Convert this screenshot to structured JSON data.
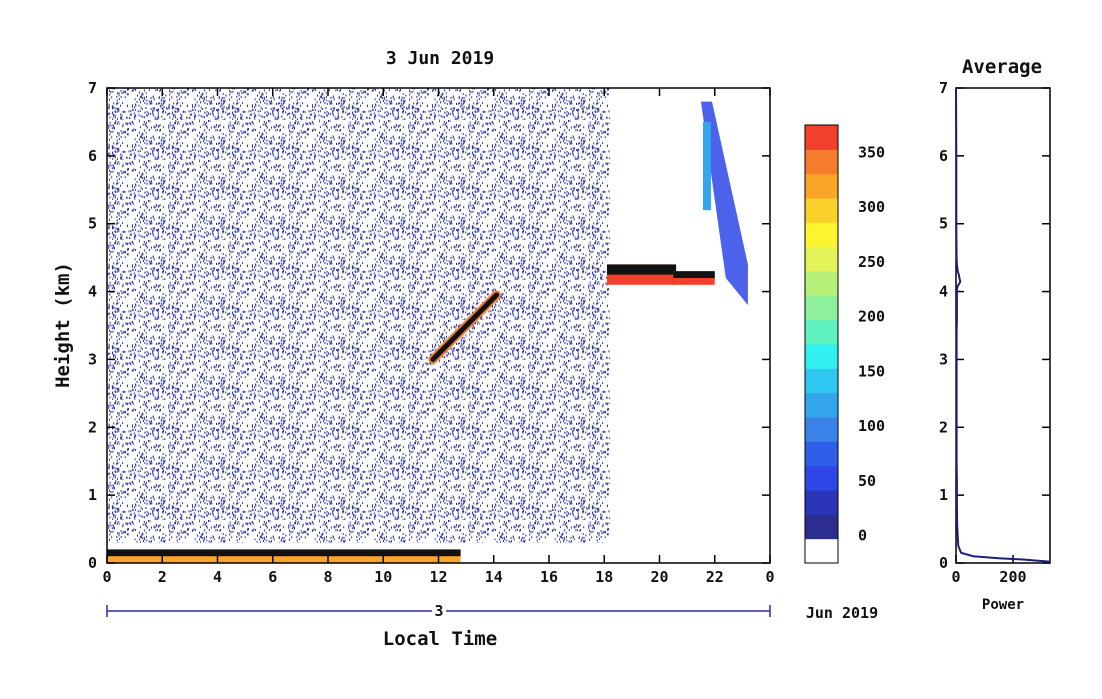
{
  "chart_data": [
    {
      "type": "heatmap",
      "title": "3 Jun 2019",
      "xlabel": "Local Time",
      "ylabel": "Height (km)",
      "xlim": [
        0,
        24
      ],
      "ylim": [
        0,
        7
      ],
      "x_tick_labels": [
        "0",
        "2",
        "4",
        "6",
        "8",
        "10",
        "12",
        "14",
        "16",
        "18",
        "20",
        "22",
        "0"
      ],
      "y_tick_labels": [
        "0",
        "1",
        "2",
        "3",
        "4",
        "5",
        "6",
        "7"
      ],
      "date_bar_label": "3",
      "date_suffix": "Jun 2019",
      "colorbar": {
        "ticks": [
          "0",
          "50",
          "100",
          "150",
          "200",
          "250",
          "300",
          "350"
        ],
        "tick_values": [
          0,
          50,
          100,
          150,
          200,
          250,
          300,
          350
        ],
        "range": [
          -25,
          375
        ],
        "colors": [
          "#ffffff",
          "#2c2e8f",
          "#2a35b7",
          "#2d47e6",
          "#2f5fe8",
          "#3a82e8",
          "#33a6ee",
          "#2fc7f0",
          "#33f0f0",
          "#5ef2c0",
          "#8df09a",
          "#b6f078",
          "#e2f45a",
          "#fbf431",
          "#fbd02a",
          "#f9a628",
          "#f57c2b",
          "#f2402d"
        ]
      },
      "features": [
        {
          "name": "surface layer",
          "x": [
            0,
            12.8
          ],
          "y": [
            0,
            0.2
          ],
          "level": 320
        },
        {
          "name": "rising cloud layer",
          "x": [
            11.8,
            14.1
          ],
          "y": [
            3.0,
            3.95
          ],
          "level": 360
        },
        {
          "name": "cloud layer",
          "x": [
            18.1,
            20.6
          ],
          "y": [
            4.1,
            4.4
          ],
          "level": 360
        },
        {
          "name": "cloud layer",
          "x": [
            20.5,
            22.0
          ],
          "y": [
            4.1,
            4.3
          ],
          "level": 360
        },
        {
          "name": "high cloud",
          "x": [
            21.5,
            23.2
          ],
          "y": [
            3.8,
            6.8
          ],
          "level": 80
        }
      ]
    },
    {
      "type": "line",
      "title": "Average",
      "xlabel": "Power",
      "ylabel": "",
      "xlim": [
        0,
        330
      ],
      "ylim": [
        0,
        7
      ],
      "x_tick_labels": [
        "0",
        "200"
      ],
      "y_tick_labels": [
        "0",
        "1",
        "2",
        "3",
        "4",
        "5",
        "6",
        "7"
      ],
      "power": [
        330,
        300,
        240,
        150,
        60,
        18,
        8,
        6,
        4,
        3,
        3,
        2,
        2,
        2,
        2,
        2,
        2,
        2,
        2,
        3,
        3,
        3,
        3,
        3,
        3,
        3,
        4,
        6,
        12,
        15,
        12,
        10,
        6,
        3,
        2,
        1,
        1,
        0
      ],
      "height": [
        0.02,
        0.03,
        0.05,
        0.07,
        0.1,
        0.15,
        0.25,
        0.4,
        0.6,
        0.9,
        1.2,
        1.5,
        1.8,
        2.1,
        2.4,
        2.7,
        3.0,
        3.2,
        3.4,
        3.6,
        3.7,
        3.8,
        3.9,
        3.95,
        4.0,
        4.02,
        4.05,
        4.08,
        4.12,
        4.15,
        4.2,
        4.25,
        4.3,
        4.4,
        4.5,
        5.0,
        6.0,
        7.0
      ]
    }
  ]
}
